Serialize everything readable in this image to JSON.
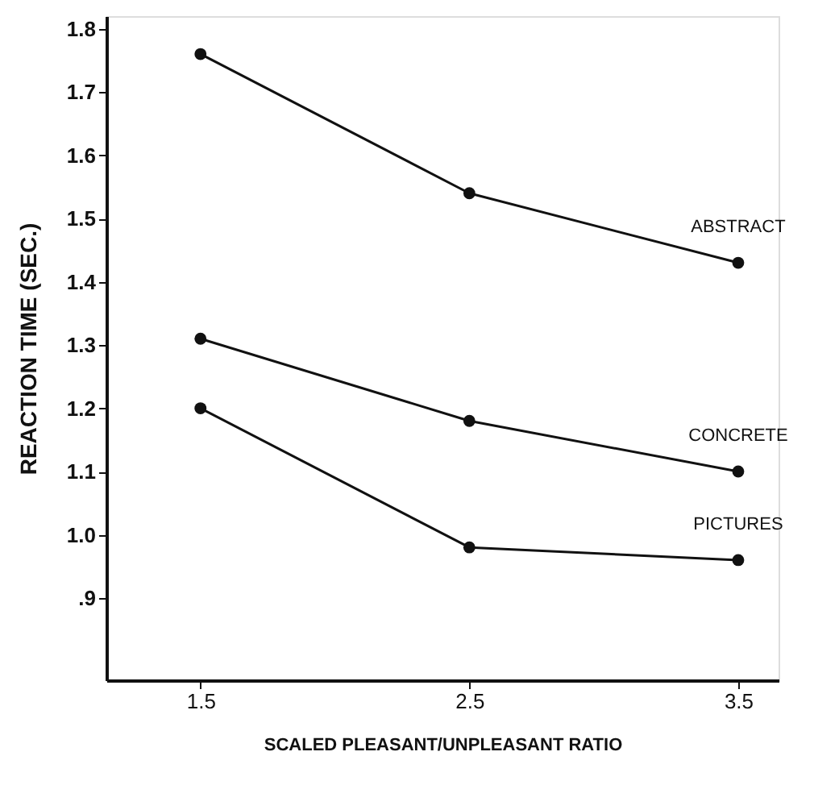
{
  "chart_data": {
    "type": "line",
    "xlabel": "SCALED PLEASANT/UNPLEASANT RATIO",
    "ylabel": "REACTION TIME (SEC.)",
    "x": [
      1.5,
      2.5,
      3.5
    ],
    "series": [
      {
        "name": "ABSTRACT",
        "color": "#111111",
        "values": [
          1.76,
          1.54,
          1.43
        ]
      },
      {
        "name": "CONCRETE",
        "color": "#111111",
        "values": [
          1.31,
          1.18,
          1.1
        ]
      },
      {
        "name": "PICTURES",
        "color": "#111111",
        "values": [
          1.2,
          0.98,
          0.96
        ]
      }
    ],
    "xlim": [
      1.15,
      3.65
    ],
    "xticks": [
      1.5,
      2.5,
      3.5
    ],
    "ylim": [
      0.77,
      1.82
    ],
    "yticks": [
      {
        "value": 0.9,
        "label": ".9"
      },
      {
        "value": 1.0,
        "label": "1.0"
      },
      1.1,
      1.2,
      1.3,
      1.4,
      1.5,
      1.6,
      1.7,
      1.8
    ],
    "marker": "circle",
    "line_style": "solid",
    "grid": false,
    "legend": false
  }
}
